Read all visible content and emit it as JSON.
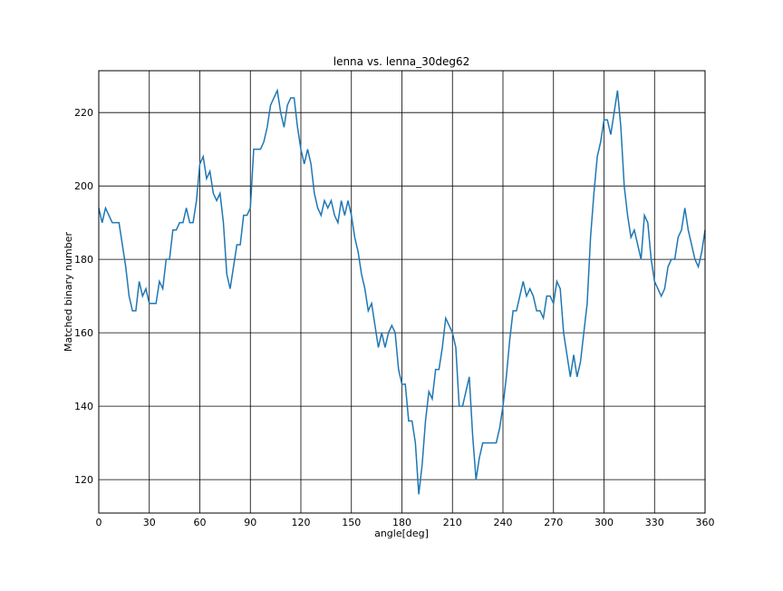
{
  "chart_data": {
    "type": "line",
    "title": "lenna vs. lenna_30deg62",
    "x_label": "angle[deg]",
    "y_label": "Matched binary number",
    "x": [
      0,
      2,
      4,
      6,
      8,
      10,
      12,
      14,
      16,
      18,
      20,
      22,
      24,
      26,
      28,
      30,
      32,
      34,
      36,
      38,
      40,
      42,
      44,
      46,
      48,
      50,
      52,
      54,
      56,
      58,
      60,
      62,
      64,
      66,
      68,
      70,
      72,
      74,
      76,
      78,
      80,
      82,
      84,
      86,
      88,
      90,
      92,
      94,
      96,
      98,
      100,
      102,
      104,
      106,
      108,
      110,
      112,
      114,
      116,
      118,
      120,
      122,
      124,
      126,
      128,
      130,
      132,
      134,
      136,
      138,
      140,
      142,
      144,
      146,
      148,
      150,
      152,
      154,
      156,
      158,
      160,
      162,
      164,
      166,
      168,
      170,
      172,
      174,
      176,
      178,
      180,
      182,
      184,
      186,
      188,
      190,
      192,
      194,
      196,
      198,
      200,
      202,
      204,
      206,
      208,
      210,
      212,
      214,
      216,
      218,
      220,
      222,
      224,
      226,
      228,
      230,
      232,
      234,
      236,
      238,
      240,
      242,
      244,
      246,
      248,
      250,
      252,
      254,
      256,
      258,
      260,
      262,
      264,
      266,
      268,
      270,
      272,
      274,
      276,
      278,
      280,
      282,
      284,
      286,
      288,
      290,
      292,
      294,
      296,
      298,
      300,
      302,
      304,
      306,
      308,
      310,
      312,
      314,
      316,
      318,
      320,
      322,
      324,
      326,
      328,
      330,
      332,
      334,
      336,
      338,
      340,
      342,
      344,
      346,
      348,
      350,
      352,
      354,
      356,
      358,
      360
    ],
    "series": [
      {
        "color": "#1f77b4",
        "values": [
          194,
          190,
          194,
          192,
          190,
          190,
          190,
          184,
          178,
          170,
          166,
          166,
          174,
          170,
          172,
          168,
          168,
          168,
          174,
          172,
          180,
          180,
          188,
          188,
          190,
          190,
          194,
          190,
          190,
          196,
          206,
          208,
          202,
          204,
          198,
          196,
          198,
          190,
          176,
          172,
          178,
          184,
          184,
          192,
          192,
          194,
          210,
          210,
          210,
          212,
          216,
          222,
          224,
          226,
          220,
          216,
          222,
          224,
          224,
          216,
          210,
          206,
          210,
          206,
          198,
          194,
          192,
          196,
          194,
          196,
          192,
          190,
          196,
          192,
          196,
          192,
          186,
          182,
          176,
          172,
          166,
          168,
          162,
          156,
          160,
          156,
          160,
          162,
          160,
          150,
          146,
          146,
          136,
          136,
          130,
          116,
          124,
          136,
          144,
          142,
          150,
          150,
          156,
          164,
          162,
          160,
          156,
          140,
          140,
          144,
          148,
          132,
          120,
          126,
          130,
          130,
          130,
          130,
          130,
          134,
          140,
          148,
          158,
          166,
          166,
          170,
          174,
          170,
          172,
          170,
          166,
          166,
          164,
          170,
          170,
          168,
          174,
          172,
          160,
          154,
          148,
          154,
          148,
          152,
          160,
          168,
          186,
          198,
          208,
          212,
          218,
          218,
          214,
          220,
          226,
          216,
          200,
          192,
          186,
          188,
          184,
          180,
          192,
          190,
          180,
          174,
          172,
          170,
          172,
          178,
          180,
          180,
          186,
          188,
          194,
          188,
          184,
          180,
          178,
          182,
          188
        ]
      }
    ],
    "xlim": [
      0,
      360
    ],
    "xticks": [
      0,
      30,
      60,
      90,
      120,
      150,
      180,
      210,
      240,
      270,
      300,
      330,
      360
    ],
    "ylim": [
      110.9,
      231.4
    ],
    "yticks": [
      120,
      140,
      160,
      180,
      200,
      220
    ],
    "grid": true
  }
}
